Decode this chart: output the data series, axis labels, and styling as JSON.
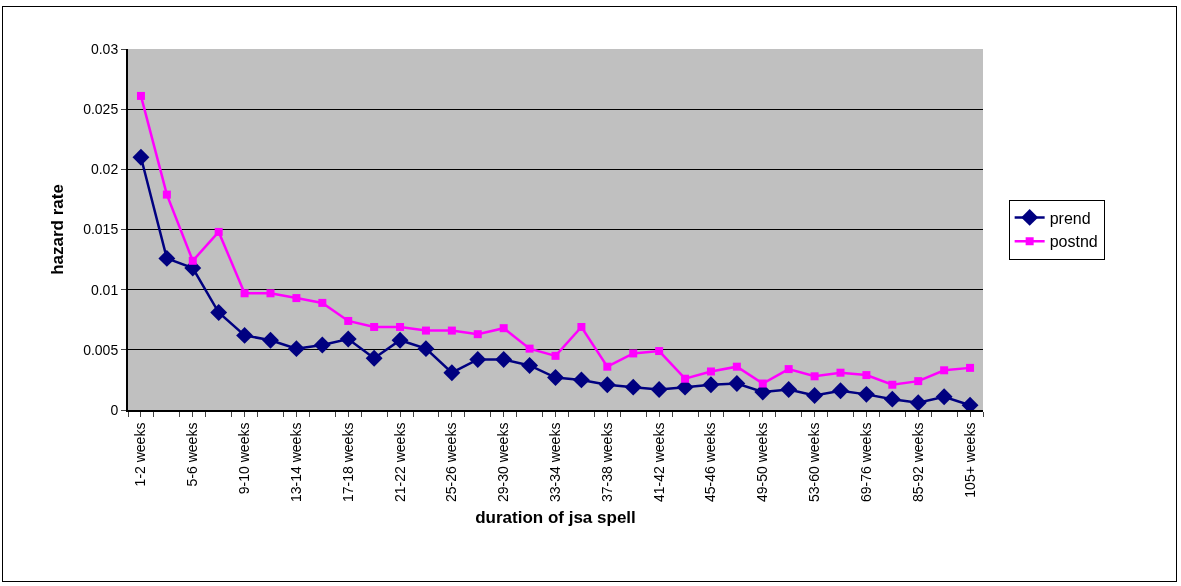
{
  "chart_data": {
    "type": "line",
    "xlabel": "duration of jsa spell",
    "ylabel": "hazard rate",
    "categories": [
      "1-2 weeks",
      null,
      "5-6 weeks",
      null,
      "9-10 weeks",
      null,
      "13-14 weeks",
      null,
      "17-18 weeks",
      null,
      "21-22 weeks",
      null,
      "25-26 weeks",
      null,
      "29-30 weeks",
      null,
      "33-34 weeks",
      null,
      "37-38 weeks",
      null,
      "41-42 weeks",
      null,
      "45-46 weeks",
      null,
      "49-50 weeks",
      null,
      "53-60 weeks",
      null,
      "69-76 weeks",
      null,
      "85-92 weeks",
      null,
      "105+ weeks"
    ],
    "series": [
      {
        "name": "prend",
        "color": "#000080",
        "marker": "diamond",
        "values": [
          0.021,
          0.0126,
          0.0118,
          0.0081,
          0.0062,
          0.0058,
          0.0051,
          0.0054,
          0.0059,
          0.0043,
          0.0058,
          0.0051,
          0.0031,
          0.0042,
          0.0042,
          0.0037,
          0.0027,
          0.0025,
          0.0021,
          0.0019,
          0.0017,
          0.0019,
          0.0021,
          0.0022,
          0.0015,
          0.0017,
          0.0012,
          0.0016,
          0.0013,
          0.0009,
          0.0006,
          0.0011,
          0.0004
        ]
      },
      {
        "name": "postnd",
        "color": "#ff00ff",
        "marker": "square",
        "values": [
          0.0261,
          0.0179,
          0.0124,
          0.0148,
          0.0097,
          0.0097,
          0.0093,
          0.0089,
          0.0074,
          0.0069,
          0.0069,
          0.0066,
          0.0066,
          0.0063,
          0.0068,
          0.0051,
          0.0045,
          0.0069,
          0.0036,
          0.0047,
          0.0049,
          0.0026,
          0.0032,
          0.0036,
          0.0022,
          0.0034,
          0.0028,
          0.0031,
          0.0029,
          0.0021,
          0.0024,
          0.0033,
          0.0035
        ]
      }
    ],
    "ylim": [
      0,
      0.03
    ],
    "yticks": [
      0,
      0.005,
      0.01,
      0.015,
      0.02,
      0.025,
      0.03
    ],
    "grid": "y",
    "legend": "right",
    "line_style": "solid"
  }
}
